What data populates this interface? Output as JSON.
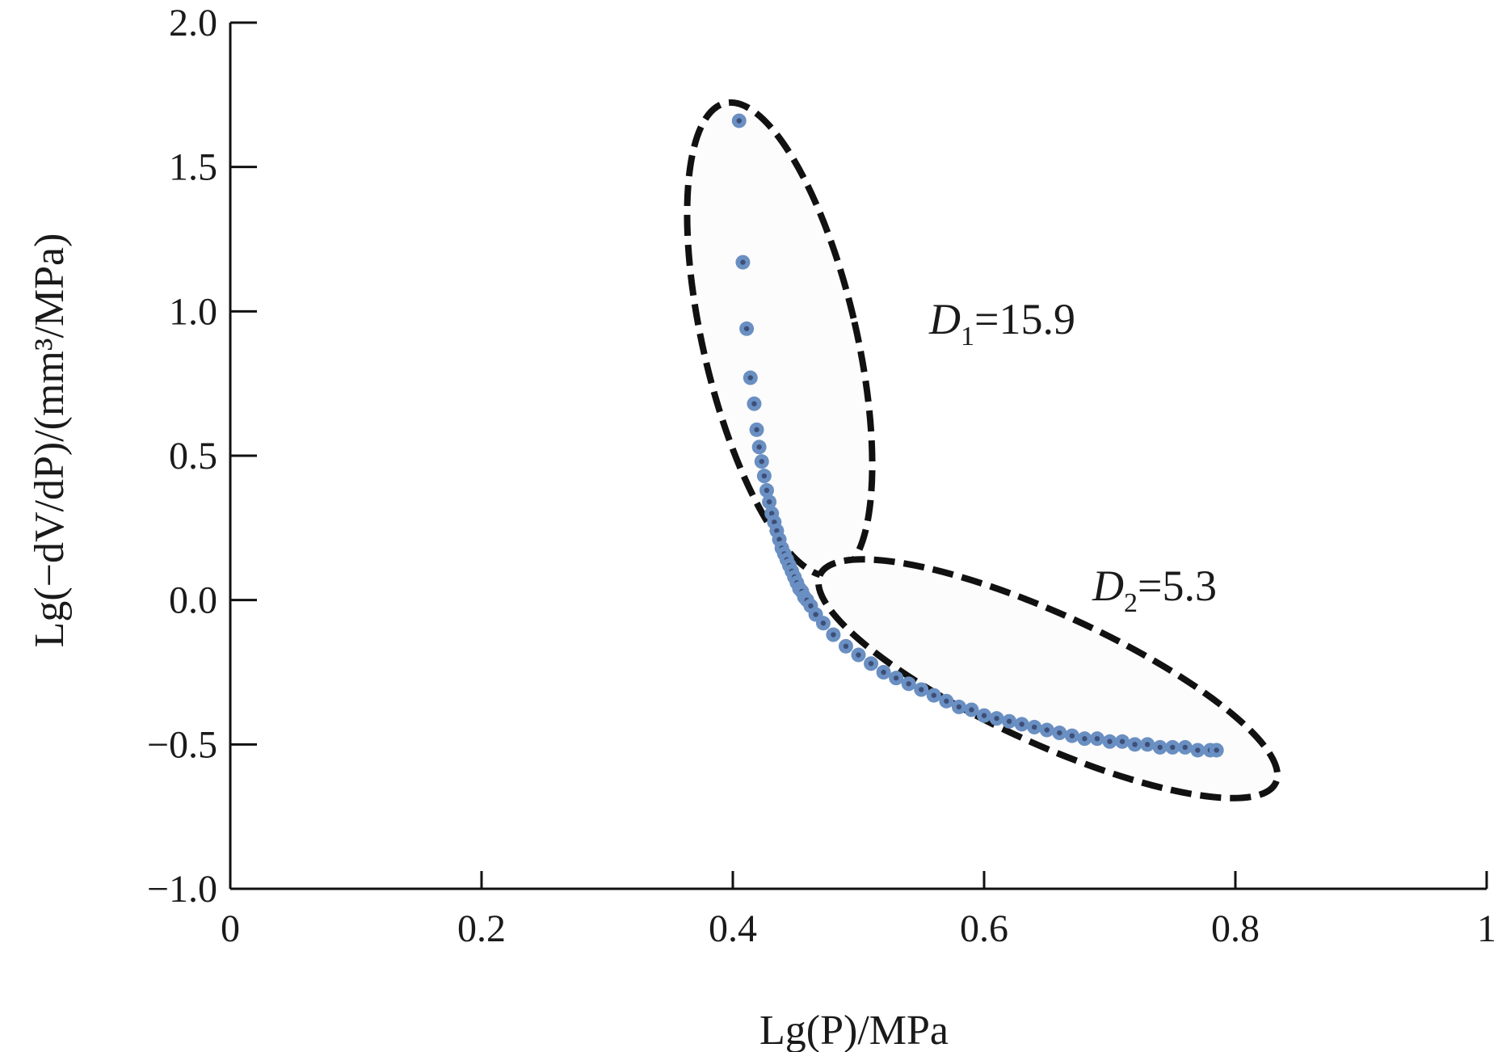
{
  "chart_data": {
    "type": "scatter",
    "xlabel": "Lg(P)/MPa",
    "ylabel": "Lg(−dV/dP)/(mm³/MPa)",
    "xlim": [
      0,
      1
    ],
    "ylim": [
      -1.0,
      2.0
    ],
    "x_ticks": [
      "0",
      "0.2",
      "0.4",
      "0.6",
      "0.8",
      "1"
    ],
    "y_ticks": [
      "−1.0",
      "−0.5",
      "0.0",
      "0.5",
      "1.0",
      "1.5",
      "2.0"
    ],
    "grid": false,
    "legend": "none",
    "marker_color": "#6a8fc2",
    "series": [
      {
        "x": [
          0.405,
          0.408,
          0.411,
          0.414,
          0.417,
          0.419,
          0.421,
          0.423,
          0.425,
          0.427,
          0.429,
          0.431,
          0.433,
          0.435,
          0.437,
          0.439,
          0.441,
          0.443,
          0.445,
          0.447,
          0.449,
          0.451,
          0.453,
          0.455,
          0.457,
          0.459,
          0.462,
          0.466,
          0.472,
          0.48,
          0.49,
          0.5,
          0.51,
          0.52,
          0.53,
          0.54,
          0.55,
          0.56,
          0.57,
          0.58,
          0.59,
          0.6,
          0.61,
          0.62,
          0.63,
          0.64,
          0.65,
          0.66,
          0.67,
          0.68,
          0.69,
          0.7,
          0.71,
          0.72,
          0.73,
          0.74,
          0.75,
          0.76,
          0.77,
          0.78,
          0.785
        ],
        "y": [
          1.66,
          1.17,
          0.94,
          0.77,
          0.68,
          0.59,
          0.53,
          0.48,
          0.43,
          0.38,
          0.34,
          0.3,
          0.27,
          0.24,
          0.21,
          0.18,
          0.16,
          0.14,
          0.12,
          0.1,
          0.08,
          0.06,
          0.04,
          0.03,
          0.01,
          0.0,
          -0.02,
          -0.05,
          -0.08,
          -0.12,
          -0.16,
          -0.19,
          -0.22,
          -0.25,
          -0.27,
          -0.29,
          -0.31,
          -0.33,
          -0.35,
          -0.37,
          -0.38,
          -0.4,
          -0.41,
          -0.42,
          -0.43,
          -0.44,
          -0.45,
          -0.46,
          -0.47,
          -0.48,
          -0.48,
          -0.49,
          -0.49,
          -0.5,
          -0.5,
          -0.51,
          -0.51,
          -0.51,
          -0.52,
          -0.52,
          -0.52
        ]
      }
    ],
    "annotations": [
      {
        "id": "d1",
        "symbol": "D",
        "subscript": "1",
        "value": "=15.9"
      },
      {
        "id": "d2",
        "symbol": "D",
        "subscript": "2",
        "value": "=5.3"
      }
    ]
  }
}
